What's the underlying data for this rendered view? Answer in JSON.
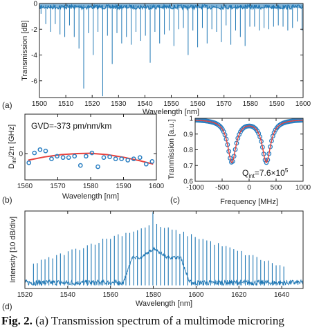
{
  "caption": {
    "fig": "Fig. 2.",
    "text": " (a) Transmission spectrum of a multimode microring"
  },
  "colors": {
    "trace": "#1f77b4",
    "fit": "#e8413c",
    "marker": "#2b7fc2",
    "axis": "#222222"
  },
  "chart_data": [
    {
      "id": "a",
      "panel_label": "(a)",
      "type": "line",
      "title": "",
      "xlabel": "Wavelength [nm]",
      "ylabel": "Transmission [dB]",
      "xlim": [
        1500,
        1600
      ],
      "ylim": [
        -7.3,
        0
      ],
      "xticks": [
        1500,
        1510,
        1520,
        1530,
        1540,
        1550,
        1560,
        1570,
        1580,
        1590,
        1600
      ],
      "yticks": [
        0,
        -2,
        -4,
        -6
      ],
      "baseline_db": -0.1,
      "dips": [
        {
          "x": 1500.6,
          "depth": -0.8
        },
        {
          "x": 1502.4,
          "depth": -1.6
        },
        {
          "x": 1504.2,
          "depth": -2.2
        },
        {
          "x": 1506.0,
          "depth": -1.6
        },
        {
          "x": 1507.8,
          "depth": -2.4
        },
        {
          "x": 1509.6,
          "depth": -2.6
        },
        {
          "x": 1511.4,
          "depth": -1.7
        },
        {
          "x": 1513.2,
          "depth": -2.6
        },
        {
          "x": 1515.0,
          "depth": -3.5
        },
        {
          "x": 1516.8,
          "depth": -6.6
        },
        {
          "x": 1518.6,
          "depth": -2.3
        },
        {
          "x": 1520.4,
          "depth": -4.0
        },
        {
          "x": 1522.2,
          "depth": -2.2
        },
        {
          "x": 1524.0,
          "depth": -7.2
        },
        {
          "x": 1525.8,
          "depth": -2.5
        },
        {
          "x": 1527.6,
          "depth": -4.7
        },
        {
          "x": 1529.4,
          "depth": -2.3
        },
        {
          "x": 1531.2,
          "depth": -3.1
        },
        {
          "x": 1533.0,
          "depth": -2.6
        },
        {
          "x": 1534.8,
          "depth": -3.2
        },
        {
          "x": 1536.6,
          "depth": -2.2
        },
        {
          "x": 1538.4,
          "depth": -2.9
        },
        {
          "x": 1540.2,
          "depth": -2.5
        },
        {
          "x": 1542.0,
          "depth": -4.6
        },
        {
          "x": 1543.8,
          "depth": -2.2
        },
        {
          "x": 1545.6,
          "depth": -3.1
        },
        {
          "x": 1547.4,
          "depth": -2.4
        },
        {
          "x": 1549.2,
          "depth": -2.1
        },
        {
          "x": 1551.0,
          "depth": -3.3
        },
        {
          "x": 1552.8,
          "depth": -2.0
        },
        {
          "x": 1554.6,
          "depth": -1.9
        },
        {
          "x": 1556.4,
          "depth": -4.0
        },
        {
          "x": 1558.2,
          "depth": -2.1
        },
        {
          "x": 1560.0,
          "depth": -3.4
        },
        {
          "x": 1561.8,
          "depth": -1.9
        },
        {
          "x": 1563.6,
          "depth": -3.1
        },
        {
          "x": 1565.4,
          "depth": -2.0
        },
        {
          "x": 1567.2,
          "depth": -2.2
        },
        {
          "x": 1569.0,
          "depth": -3.0
        },
        {
          "x": 1570.8,
          "depth": -1.7
        },
        {
          "x": 1572.6,
          "depth": -3.2
        },
        {
          "x": 1574.4,
          "depth": -2.1
        },
        {
          "x": 1576.2,
          "depth": -2.6
        },
        {
          "x": 1578.0,
          "depth": -3.3
        },
        {
          "x": 1579.8,
          "depth": -1.8
        },
        {
          "x": 1581.6,
          "depth": -1.8
        },
        {
          "x": 1583.4,
          "depth": -2.1
        },
        {
          "x": 1585.2,
          "depth": -1.9
        },
        {
          "x": 1587.0,
          "depth": -2.0
        },
        {
          "x": 1588.8,
          "depth": -1.8
        },
        {
          "x": 1590.6,
          "depth": -1.7
        },
        {
          "x": 1592.4,
          "depth": -1.8
        },
        {
          "x": 1594.2,
          "depth": -2.1
        },
        {
          "x": 1596.0,
          "depth": -1.9
        },
        {
          "x": 1597.8,
          "depth": -1.4
        },
        {
          "x": 1599.6,
          "depth": -2.1
        }
      ]
    },
    {
      "id": "b",
      "panel_label": "(b)",
      "type": "scatter",
      "title": "",
      "annotation": "GVD=-373 pm/nm/km",
      "xlabel": "Wavelength [nm]",
      "ylabel_main": "D",
      "ylabel_sub": "int",
      "ylabel_rest": "/2π [GHz]",
      "xlim": [
        1560,
        1600
      ],
      "ylim": [
        -2,
        3
      ],
      "xticks": [
        1560,
        1570,
        1580,
        1590,
        1600
      ],
      "yticks": [
        0
      ],
      "points": [
        {
          "x": 1561.2,
          "y": -0.7
        },
        {
          "x": 1562.9,
          "y": 0.05
        },
        {
          "x": 1564.6,
          "y": 0.3
        },
        {
          "x": 1566.3,
          "y": 0.2
        },
        {
          "x": 1568.1,
          "y": -0.4
        },
        {
          "x": 1569.8,
          "y": -0.2
        },
        {
          "x": 1571.6,
          "y": -0.3
        },
        {
          "x": 1573.3,
          "y": -0.3
        },
        {
          "x": 1575.1,
          "y": -0.2
        },
        {
          "x": 1576.9,
          "y": -0.9
        },
        {
          "x": 1578.6,
          "y": -0.2
        },
        {
          "x": 1580.4,
          "y": 0.05
        },
        {
          "x": 1582.2,
          "y": -1.0
        },
        {
          "x": 1584.0,
          "y": -0.3
        },
        {
          "x": 1585.8,
          "y": -0.25
        },
        {
          "x": 1587.6,
          "y": -0.4
        },
        {
          "x": 1589.4,
          "y": -0.4
        },
        {
          "x": 1591.3,
          "y": -0.5
        },
        {
          "x": 1593.1,
          "y": -0.4
        },
        {
          "x": 1595.0,
          "y": -0.3
        },
        {
          "x": 1596.9,
          "y": -0.8
        },
        {
          "x": 1598.7,
          "y": -0.6
        }
      ],
      "fit": [
        {
          "x": 1561,
          "y": -0.5
        },
        {
          "x": 1566,
          "y": -0.25
        },
        {
          "x": 1571,
          "y": -0.08
        },
        {
          "x": 1576,
          "y": 0.0
        },
        {
          "x": 1580,
          "y": 0.02
        },
        {
          "x": 1585,
          "y": -0.08
        },
        {
          "x": 1590,
          "y": -0.28
        },
        {
          "x": 1595,
          "y": -0.55
        },
        {
          "x": 1599,
          "y": -0.8
        }
      ]
    },
    {
      "id": "c",
      "panel_label": "(c)",
      "type": "line",
      "title": "",
      "annotation_main": "Q",
      "annotation_sub": "int",
      "annotation_rest": "=7.6×10",
      "annotation_sup": "5",
      "xlabel": "Frequency [MHz]",
      "ylabel": "Tranmission [a.u.]",
      "xlim": [
        -1000,
        1000
      ],
      "ylim": [
        0.6,
        1.0
      ],
      "xticks": [
        -1000,
        -500,
        0,
        500,
        1000
      ],
      "yticks": [
        0.6,
        0.7,
        0.8,
        0.9,
        1
      ],
      "model": {
        "baseline": 0.995,
        "dip1_center": -320,
        "dip2_center": 320,
        "depth": 0.27,
        "width": 190
      }
    },
    {
      "id": "d",
      "panel_label": "(d)",
      "type": "line",
      "title": "",
      "xlabel": "Wavelength [nm]",
      "ylabel": "Intensity [10 dB/div]",
      "xlim": [
        1520,
        1650
      ],
      "ylim": [
        0,
        1
      ],
      "xticks": [
        1520,
        1540,
        1560,
        1580,
        1600,
        1620,
        1640
      ],
      "comb": {
        "start": 1524.0,
        "end": 1642.0,
        "spacing": 1.8,
        "pump": 1580.4
      },
      "plateau": {
        "start": 1566,
        "end": 1597,
        "level": 0.38
      }
    }
  ]
}
